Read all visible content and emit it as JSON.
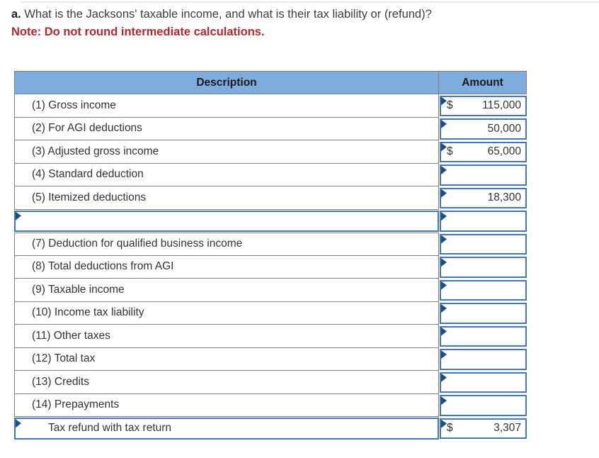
{
  "question": {
    "prefix": "a.",
    "text": " What is the Jacksons' taxable income, and what is their tax liability or (refund)?",
    "note": "Note: Do not round intermediate calculations."
  },
  "table": {
    "header": {
      "description": "Description",
      "amount": "Amount"
    },
    "rows": [
      {
        "description": "(1) Gross income",
        "currency": "$",
        "amount": "115,000",
        "editable_description": false,
        "indent": false
      },
      {
        "description": "(2) For AGI deductions",
        "currency": "",
        "amount": "50,000",
        "editable_description": false,
        "indent": false
      },
      {
        "description": "(3) Adjusted gross income",
        "currency": "$",
        "amount": "65,000",
        "editable_description": false,
        "indent": false
      },
      {
        "description": "(4) Standard deduction",
        "currency": "",
        "amount": "",
        "editable_description": false,
        "indent": false
      },
      {
        "description": "(5) Itemized deductions",
        "currency": "",
        "amount": "18,300",
        "editable_description": false,
        "indent": false
      },
      {
        "description": "",
        "currency": "",
        "amount": "",
        "editable_description": true,
        "indent": false
      },
      {
        "description": "(7) Deduction for qualified business income",
        "currency": "",
        "amount": "",
        "editable_description": false,
        "indent": false
      },
      {
        "description": "(8) Total deductions from AGI",
        "currency": "",
        "amount": "",
        "editable_description": false,
        "indent": false
      },
      {
        "description": "(9) Taxable income",
        "currency": "",
        "amount": "",
        "editable_description": false,
        "indent": false
      },
      {
        "description": "(10) Income tax liability",
        "currency": "",
        "amount": "",
        "editable_description": false,
        "indent": false
      },
      {
        "description": "(11) Other taxes",
        "currency": "",
        "amount": "",
        "editable_description": false,
        "indent": false
      },
      {
        "description": "(12) Total tax",
        "currency": "",
        "amount": "",
        "editable_description": false,
        "indent": false
      },
      {
        "description": "(13) Credits",
        "currency": "",
        "amount": "",
        "editable_description": false,
        "indent": false
      },
      {
        "description": "(14) Prepayments",
        "currency": "",
        "amount": "",
        "editable_description": false,
        "indent": false
      },
      {
        "description": "Tax refund with tax return",
        "currency": "$",
        "amount": "3,307",
        "editable_description": true,
        "indent": true
      }
    ]
  },
  "colors": {
    "header_bg": "#7dacdd",
    "input_border": "#4577b6",
    "cell_marker": "#1f4e79",
    "grid_line": "#808080",
    "note_red": "#b3282d"
  }
}
